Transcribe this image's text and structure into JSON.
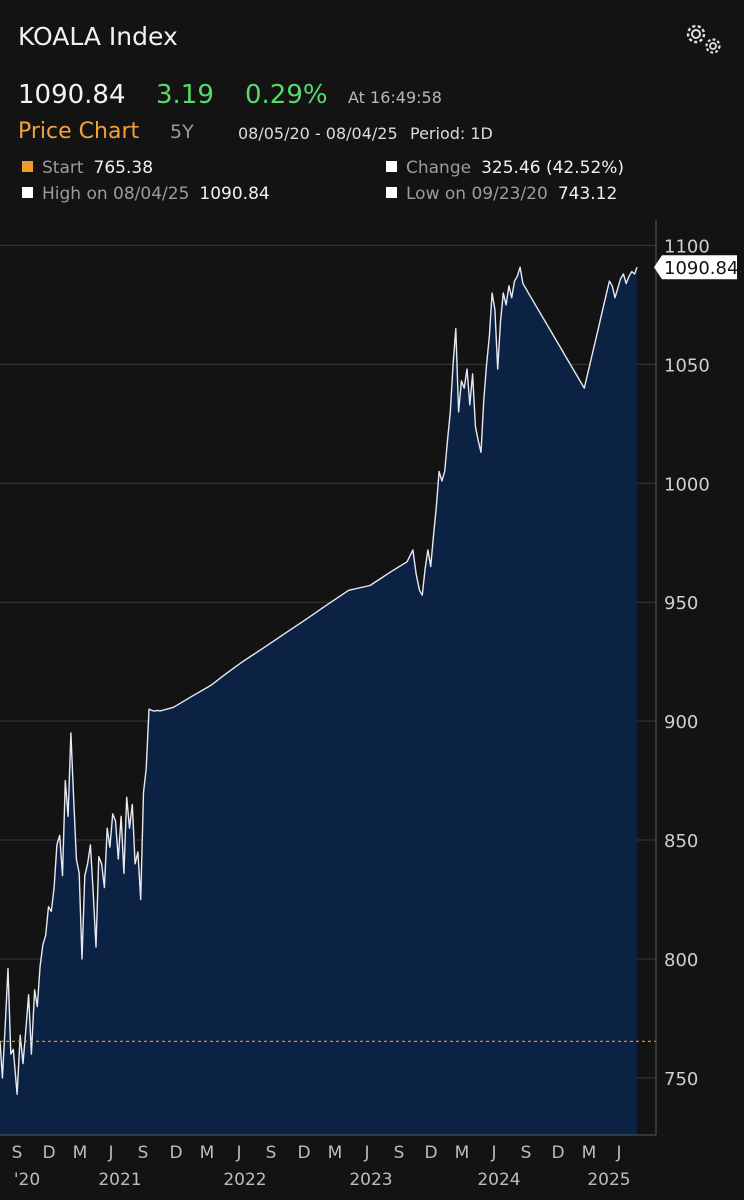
{
  "header": {
    "title": "KOALA Index",
    "settings_icon": "gear-icon",
    "last": "1090.84",
    "change": "3.19",
    "change_pct": "0.29%",
    "as_of": "At 16:49:58"
  },
  "subheader": {
    "title": "Price Chart",
    "range": "5Y",
    "dates": "08/05/20 - 08/04/25",
    "period": "Period: 1D"
  },
  "stats": {
    "start_label": "Start",
    "start_value": "765.38",
    "change_label": "Change",
    "change_value": "325.46 (42.52%)",
    "high_label": "High on 08/04/25",
    "high_value": "1090.84",
    "low_label": "Low on 09/23/20",
    "low_value": "743.12"
  },
  "colors": {
    "background": "#131313",
    "area_fill": "#0c2244",
    "line": "#e6e9ef",
    "start_marker": "#f29a2e",
    "positive": "#58d86a",
    "accent": "#f4a13c",
    "grid": "#3a3a3a"
  },
  "chart_data": {
    "type": "area",
    "title": "",
    "xlabel": "",
    "ylabel": "",
    "ylim": [
      726,
      1109
    ],
    "y_ticks": [
      750,
      800,
      850,
      900,
      950,
      1000,
      1050,
      1100
    ],
    "y_tick_labels": [
      "750",
      "800",
      "850",
      "900",
      "950",
      "1000",
      "1050",
      "1100"
    ],
    "x_tick_labels": [
      "S",
      "D",
      "M",
      "J",
      "S",
      "D",
      "M",
      "J",
      "S",
      "D",
      "M",
      "J",
      "S",
      "D",
      "M",
      "J",
      "S",
      "D",
      "M",
      "J"
    ],
    "year_labels": [
      "'20",
      "2021",
      "2022",
      "2023",
      "2024",
      "2025"
    ],
    "x_range": [
      "2020-08-05",
      "2025-08-04"
    ],
    "start_reference": 765.38,
    "last_label": "1090.84",
    "grid": "horizontal",
    "series": [
      {
        "x": [
          "2020-08-05",
          "2020-08-12",
          "2020-08-20",
          "2020-08-28",
          "2020-09-05",
          "2020-09-12",
          "2020-09-23",
          "2020-10-02",
          "2020-10-10",
          "2020-10-18",
          "2020-10-26",
          "2020-11-03",
          "2020-11-12",
          "2020-11-20",
          "2020-11-28",
          "2020-12-06",
          "2020-12-14",
          "2020-12-22",
          "2020-12-30",
          "2021-01-07",
          "2021-01-15",
          "2021-01-23",
          "2021-01-31",
          "2021-02-08",
          "2021-02-16",
          "2021-02-24",
          "2021-03-04",
          "2021-03-12",
          "2021-03-20",
          "2021-03-28",
          "2021-04-05",
          "2021-04-13",
          "2021-04-21",
          "2021-04-29",
          "2021-05-07",
          "2021-05-15",
          "2021-05-23",
          "2021-05-31",
          "2021-06-08",
          "2021-06-16",
          "2021-06-24",
          "2021-07-02",
          "2021-07-10",
          "2021-07-18",
          "2021-07-26",
          "2021-08-03",
          "2021-08-11",
          "2021-08-19",
          "2021-08-27",
          "2021-09-04",
          "2021-09-12",
          "2021-09-20",
          "2021-09-28",
          "2021-10-06",
          "2021-10-14",
          "2021-10-22",
          "2021-10-30",
          "2021-11-07",
          "2021-12-15",
          "2022-02-01",
          "2022-04-01",
          "2022-05-15",
          "2022-07-01",
          "2022-09-01",
          "2022-11-01",
          "2023-01-01",
          "2023-03-01",
          "2023-05-01",
          "2023-07-01",
          "2023-09-01",
          "2023-10-15",
          "2023-11-01",
          "2023-11-10",
          "2023-11-20",
          "2023-11-28",
          "2023-12-06",
          "2023-12-14",
          "2023-12-22",
          "2023-12-30",
          "2024-01-07",
          "2024-01-15",
          "2024-01-23",
          "2024-01-31",
          "2024-02-08",
          "2024-02-16",
          "2024-02-24",
          "2024-03-03",
          "2024-03-11",
          "2024-03-19",
          "2024-03-27",
          "2024-04-04",
          "2024-04-12",
          "2024-04-20",
          "2024-04-28",
          "2024-05-06",
          "2024-05-14",
          "2024-05-22",
          "2024-05-30",
          "2024-06-07",
          "2024-06-15",
          "2024-06-23",
          "2024-07-01",
          "2024-07-09",
          "2024-07-17",
          "2024-07-25",
          "2024-08-02",
          "2024-08-10",
          "2024-08-18",
          "2024-08-26",
          "2024-09-03",
          "2024-09-11",
          "2024-09-19",
          "2024-09-27",
          "2024-10-05",
          "2024-10-13",
          "2024-10-21",
          "2024-10-29",
          "2024-11-06",
          "2024-11-14",
          "2024-11-22",
          "2024-11-30",
          "2024-12-08",
          "2024-12-16",
          "2024-12-24",
          "2025-01-01",
          "2025-01-09",
          "2025-01-17",
          "2025-01-25",
          "2025-02-02",
          "2025-02-10",
          "2025-02-18",
          "2025-02-26",
          "2025-03-06",
          "2025-03-14",
          "2025-03-22",
          "2025-03-30",
          "2025-04-07",
          "2025-04-15",
          "2025-04-23",
          "2025-05-01",
          "2025-05-09",
          "2025-05-17",
          "2025-05-25",
          "2025-06-02",
          "2025-06-10",
          "2025-06-18",
          "2025-06-26",
          "2025-07-04",
          "2025-07-12",
          "2025-07-20",
          "2025-07-28",
          "2025-08-04"
        ],
        "values": [
          765.38,
          750,
          772,
          796,
          760,
          762,
          743.12,
          768,
          756,
          770,
          785,
          760,
          787,
          780,
          797,
          806,
          810,
          822,
          820,
          830,
          848,
          852,
          835,
          875,
          860,
          895,
          868,
          842,
          836,
          800,
          835,
          840,
          848,
          828,
          805,
          843,
          840,
          830,
          855,
          847,
          861,
          858,
          842,
          860,
          836,
          868,
          855,
          865,
          840,
          845,
          825,
          870,
          880,
          905,
          904.5,
          904.2,
          904.5,
          904.3,
          905.8,
          910,
          915,
          920,
          925,
          931,
          937,
          943,
          949,
          955,
          957,
          963,
          967,
          972,
          962,
          955,
          953,
          964,
          972,
          965,
          978,
          990,
          1005,
          1001,
          1005,
          1018,
          1030,
          1050,
          1065,
          1030,
          1043,
          1040,
          1048,
          1033,
          1046,
          1024,
          1018,
          1013,
          1035,
          1050,
          1062,
          1080,
          1073,
          1048,
          1068,
          1080,
          1075,
          1083,
          1078,
          1085,
          1087,
          1090.84,
          1084,
          1082,
          1080,
          1078,
          1076,
          1074,
          1072,
          1070,
          1068,
          1066,
          1064,
          1062,
          1060,
          1058,
          1056,
          1054,
          1052,
          1050,
          1048,
          1046,
          1044,
          1042,
          1040,
          1045,
          1050,
          1055,
          1060,
          1065,
          1070,
          1075,
          1080,
          1085,
          1083,
          1078,
          1082,
          1086,
          1088,
          1084,
          1087,
          1089,
          1088,
          1090.84
        ]
      }
    ]
  }
}
